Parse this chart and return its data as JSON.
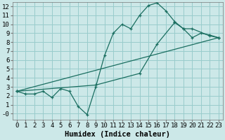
{
  "xlabel": "Humidex (Indice chaleur)",
  "bg_color": "#cce8e8",
  "grid_color": "#99cccc",
  "line_color": "#1a6e60",
  "xlim": [
    -0.5,
    23.5
  ],
  "ylim": [
    -0.7,
    12.5
  ],
  "xticks": [
    0,
    1,
    2,
    3,
    4,
    5,
    6,
    7,
    8,
    9,
    10,
    11,
    12,
    13,
    14,
    15,
    16,
    17,
    18,
    19,
    20,
    21,
    22,
    23
  ],
  "yticks": [
    0,
    1,
    2,
    3,
    4,
    5,
    6,
    7,
    8,
    9,
    10,
    11,
    12
  ],
  "line1_x": [
    0,
    1,
    2,
    3,
    4,
    5,
    6,
    7,
    8,
    9,
    10,
    11,
    12,
    13,
    14,
    15,
    16,
    17,
    18,
    19,
    20,
    21,
    22,
    23
  ],
  "line1_y": [
    2.5,
    2.2,
    2.2,
    2.5,
    1.8,
    2.8,
    2.5,
    0.8,
    -0.1,
    3.0,
    6.5,
    9.0,
    10.0,
    9.5,
    11.0,
    12.1,
    12.4,
    11.5,
    10.3,
    9.5,
    8.5,
    9.0,
    8.8,
    8.5
  ],
  "line2_x": [
    0,
    23
  ],
  "line2_y": [
    2.5,
    8.5
  ],
  "line3_x": [
    0,
    9,
    14,
    16,
    18,
    19,
    20,
    22,
    23
  ],
  "line3_y": [
    2.5,
    3.2,
    4.5,
    7.8,
    10.2,
    9.5,
    9.5,
    8.7,
    8.5
  ],
  "font_family": "monospace",
  "tick_fontsize": 6.5,
  "label_fontsize": 7.5
}
